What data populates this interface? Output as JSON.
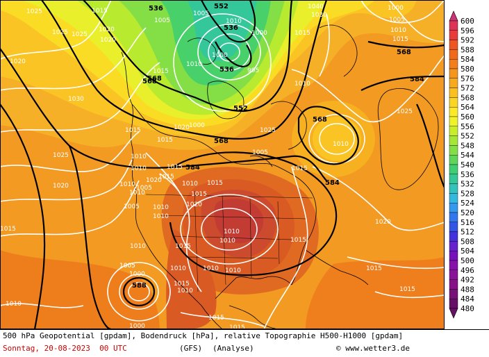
{
  "caption": {
    "line1": "500 hPa Geopotential [gpdam], Bodendruck [hPa], relative Topographie H500-H1000 [gpdam]",
    "date": "Sonntag, 20-08-2023  00 UTC",
    "model": "(GFS)",
    "run": "(Analyse)",
    "copyright": "© www.wetter3.de"
  },
  "legend": {
    "unit": "gpdam",
    "levels": [
      "600",
      "596",
      "592",
      "588",
      "584",
      "580",
      "576",
      "572",
      "568",
      "564",
      "560",
      "556",
      "552",
      "548",
      "544",
      "540",
      "536",
      "532",
      "528",
      "524",
      "520",
      "516",
      "512",
      "508",
      "504",
      "500",
      "496",
      "492",
      "488",
      "484",
      "480"
    ],
    "colors": [
      "#cc3377",
      "#dd3355",
      "#e83c3c",
      "#ee5522",
      "#f06a1a",
      "#f27f1a",
      "#f5951c",
      "#f7aa1e",
      "#f9c020",
      "#fbd523",
      "#fcea26",
      "#f0f22a",
      "#c8ee2a",
      "#a6e636",
      "#84de46",
      "#5fd65a",
      "#3fce72",
      "#33c896",
      "#33c2bc",
      "#33b8de",
      "#3399ee",
      "#3377ee",
      "#3355e6",
      "#4433dd",
      "#6622cc",
      "#7711bb",
      "#8811aa",
      "#8a1199",
      "#881188",
      "#771177",
      "#661166"
    ]
  },
  "geopotential_labels": [
    "536",
    "552",
    "536",
    "536",
    "568",
    "552",
    "568",
    "584",
    "568",
    "584",
    "584",
    "568",
    "568",
    "588"
  ],
  "pressure_labels": [
    "1025",
    "1015",
    "1025",
    "1020",
    "1025",
    "1020",
    "1020",
    "1015",
    "1030",
    "1025",
    "1015",
    "1010",
    "1005",
    "1000",
    "1010",
    "1000",
    "995",
    "1005",
    "1010",
    "1015",
    "1020",
    "1015",
    "1040",
    "1030",
    "1000",
    "1005",
    "1010",
    "1015",
    "1025",
    "1015",
    "1010",
    "1020",
    "1025",
    "1005",
    "1010",
    "1015",
    "1010",
    "1020",
    "1015",
    "1010",
    "1015",
    "1010",
    "1005",
    "1010",
    "1000",
    "1005",
    "1010",
    "1015",
    "1010",
    "1015",
    "1010",
    "1015",
    "1010",
    "1020",
    "1010",
    "1015",
    "1020",
    "1010",
    "1010",
    "1015",
    "1005",
    "1010",
    "1015",
    "1005",
    "1000",
    "1010",
    "1015",
    "1010",
    "1015",
    "1000",
    "1015"
  ]
}
